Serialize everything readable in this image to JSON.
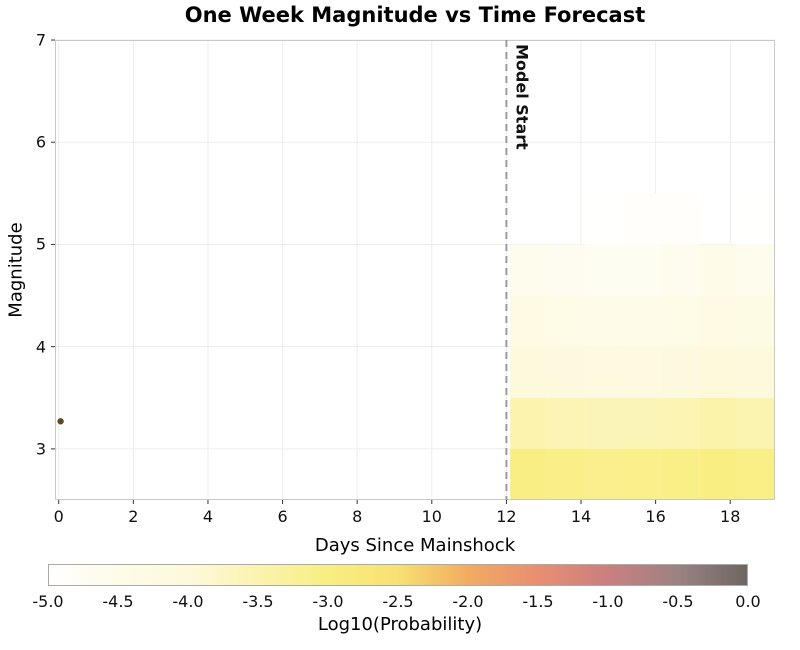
{
  "chart_data": {
    "type": "heatmap",
    "title": "One Week Magnitude vs Time Forecast",
    "xlabel": "Days Since Mainshock",
    "ylabel": "Magnitude",
    "xlim": [
      -0.1,
      19.2
    ],
    "ylim": [
      2.5,
      7
    ],
    "x_ticks": [
      0,
      2,
      4,
      6,
      8,
      10,
      12,
      14,
      16,
      18
    ],
    "y_ticks": [
      3,
      4,
      5,
      6,
      7
    ],
    "grid": true,
    "grid_color": "#ededed",
    "model_start_line": {
      "x": 12,
      "label": "Model Start",
      "color": "#9b9b9b",
      "style": "dashed"
    },
    "mainshock_point": {
      "x": 0.05,
      "y": 3.27,
      "color": "#5a4a1e"
    },
    "heatmap": {
      "x_edges": [
        12.1,
        13.11,
        14.13,
        15.14,
        16.16,
        17.17,
        18.19,
        19.2
      ],
      "y_edges": [
        2.5,
        3.0,
        3.5,
        4.0,
        4.5,
        5.0,
        5.5
      ],
      "log10_probability": [
        [
          -3.02,
          -3.08,
          -3.12,
          -3.1,
          -3.06,
          -3.0,
          -3.05
        ],
        [
          -3.5,
          -3.58,
          -3.62,
          -3.6,
          -3.55,
          -3.45,
          -3.52
        ],
        [
          -4.02,
          -4.12,
          -4.16,
          -4.14,
          -4.08,
          -3.98,
          -4.05
        ],
        [
          -4.35,
          -4.45,
          -4.5,
          -4.48,
          -4.4,
          -4.28,
          -4.38
        ],
        [
          -4.6,
          -4.68,
          -4.72,
          -4.7,
          -4.62,
          -4.48,
          -4.58
        ],
        [
          -5.0,
          -5.0,
          -4.96,
          -4.92,
          -4.9,
          -5.0,
          -4.95
        ]
      ]
    },
    "colorbar": {
      "label": "Log10(Probability)",
      "min": -5.0,
      "max": 0.0,
      "ticks": [
        -5.0,
        -4.5,
        -4.0,
        -3.5,
        -3.0,
        -2.5,
        -2.0,
        -1.5,
        -1.0,
        -0.5,
        0.0
      ],
      "tick_labels": [
        "-5.0",
        "-4.5",
        "-4.0",
        "-3.5",
        "-3.0",
        "-2.5",
        "-2.0",
        "-1.5",
        "-1.0",
        "-0.5",
        "0.0"
      ],
      "stops": [
        {
          "value": -5.0,
          "color": "#ffffff"
        },
        {
          "value": -4.5,
          "color": "#fefbe8"
        },
        {
          "value": -4.0,
          "color": "#fdf9dc"
        },
        {
          "value": -3.5,
          "color": "#fbf3ae"
        },
        {
          "value": -3.0,
          "color": "#f8ee82"
        },
        {
          "value": -2.5,
          "color": "#f8e171"
        },
        {
          "value": -2.0,
          "color": "#f2ab61"
        },
        {
          "value": -1.5,
          "color": "#e98e72"
        },
        {
          "value": -1.0,
          "color": "#cb7f7f"
        },
        {
          "value": -0.5,
          "color": "#9c8283"
        },
        {
          "value": 0.0,
          "color": "#6d6661"
        }
      ]
    }
  }
}
